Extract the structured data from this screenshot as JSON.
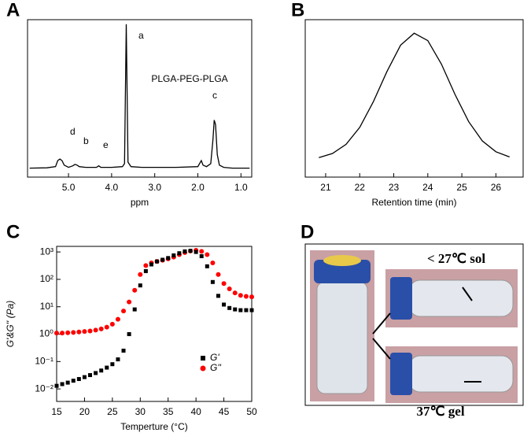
{
  "chart_data": [
    {
      "type": "line",
      "panel_label": "A",
      "x_label": "ppm",
      "color": "#000000",
      "x": [
        5.9,
        5.5,
        5.3,
        5.25,
        5.2,
        5.15,
        5.1,
        5.0,
        4.9,
        4.85,
        4.8,
        4.75,
        4.6,
        4.35,
        4.3,
        4.25,
        4.0,
        3.75,
        3.7,
        3.66,
        3.62,
        3.55,
        3.3,
        2.5,
        2.0,
        1.92,
        1.88,
        1.8,
        1.7,
        1.65,
        1.62,
        1.59,
        1.55,
        1.5,
        1.4,
        1.2,
        0.8
      ],
      "values": [
        1,
        1.2,
        2,
        6,
        7,
        6,
        3,
        1.5,
        2.5,
        3.5,
        3,
        2,
        1.5,
        1.5,
        2.5,
        1.5,
        1.5,
        2,
        4,
        97,
        5,
        2,
        1.5,
        1.5,
        2,
        6,
        3,
        2,
        4,
        20,
        33,
        30,
        10,
        3,
        1.5,
        1,
        1
      ],
      "xlim": [
        5.95,
        0.75
      ],
      "ylim": [
        -5,
        100
      ],
      "xticks": [
        {
          "value": 5,
          "label": "5.0"
        },
        {
          "value": 4,
          "label": "4.0"
        },
        {
          "value": 3,
          "label": "3.0"
        },
        {
          "value": 2,
          "label": "2.0"
        },
        {
          "value": 1,
          "label": "1.0"
        }
      ],
      "annotations": [
        "a",
        "b",
        "c",
        "d",
        "e",
        "PLGA-PEG-PLGA"
      ]
    },
    {
      "type": "line",
      "panel_label": "B",
      "x_label": "Retention time (min)",
      "color": "#000000",
      "x": [
        20.8,
        21.2,
        21.6,
        22.0,
        22.4,
        22.8,
        23.2,
        23.6,
        24.0,
        24.4,
        24.8,
        25.2,
        25.6,
        26.0,
        26.4
      ],
      "values": [
        12.4,
        15.0,
        20.8,
        31.6,
        47.9,
        67.1,
        83.8,
        91.4,
        86.7,
        71.8,
        52.5,
        35.2,
        23.0,
        16.1,
        12.8
      ],
      "xlim": [
        20.4,
        26.8
      ],
      "ylim": [
        0,
        100
      ],
      "xticks": [
        21,
        22,
        23,
        24,
        25,
        26
      ]
    },
    {
      "type": "scatter",
      "panel_label": "C",
      "x_label": "Temperture (°C)",
      "y_label": "G'&G'' (Pa)",
      "y_log": true,
      "x": [
        15,
        16,
        17,
        18,
        19,
        20,
        21,
        22,
        23,
        24,
        25,
        26,
        27,
        28,
        29,
        30,
        31,
        32,
        33,
        34,
        35,
        36,
        37,
        38,
        39,
        40,
        41,
        42,
        43,
        44,
        45,
        46,
        47,
        48,
        49,
        50
      ],
      "series": [
        {
          "name": "G'",
          "color": "#000000",
          "marker": "square",
          "values": [
            0.013,
            0.015,
            0.017,
            0.02,
            0.023,
            0.027,
            0.032,
            0.038,
            0.047,
            0.06,
            0.08,
            0.12,
            0.25,
            1,
            8,
            60,
            200,
            350,
            450,
            520,
            600,
            750,
            900,
            1050,
            1100,
            1000,
            700,
            300,
            80,
            25,
            12,
            9,
            8,
            7.5,
            7.5,
            7.5
          ]
        },
        {
          "name": "G''",
          "color": "#ff0000",
          "marker": "circle",
          "values": [
            1.1,
            1.1,
            1.12,
            1.15,
            1.2,
            1.25,
            1.3,
            1.4,
            1.55,
            1.8,
            2.3,
            3.5,
            7,
            15,
            40,
            150,
            320,
            400,
            450,
            500,
            560,
            650,
            800,
            950,
            1080,
            1150,
            1050,
            800,
            400,
            150,
            70,
            45,
            32,
            26,
            24,
            23
          ]
        }
      ],
      "xlim": [
        15,
        50
      ],
      "ylim": [
        0.0035,
        1600
      ],
      "xticks": [
        15,
        20,
        25,
        30,
        35,
        40,
        45,
        50
      ],
      "yticks": [
        {
          "value": 0.01,
          "label": "10⁻²"
        },
        {
          "value": 0.1,
          "label": "10⁻¹"
        },
        {
          "value": 1,
          "label": "10⁰"
        },
        {
          "value": 10,
          "label": "10¹"
        },
        {
          "value": 100,
          "label": "10²"
        },
        {
          "value": 1000,
          "label": "10³"
        }
      ]
    }
  ],
  "photo_panel": {
    "panel_label": "D",
    "top_caption": "< 27℃ sol",
    "bottom_caption": "37℃ gel"
  }
}
